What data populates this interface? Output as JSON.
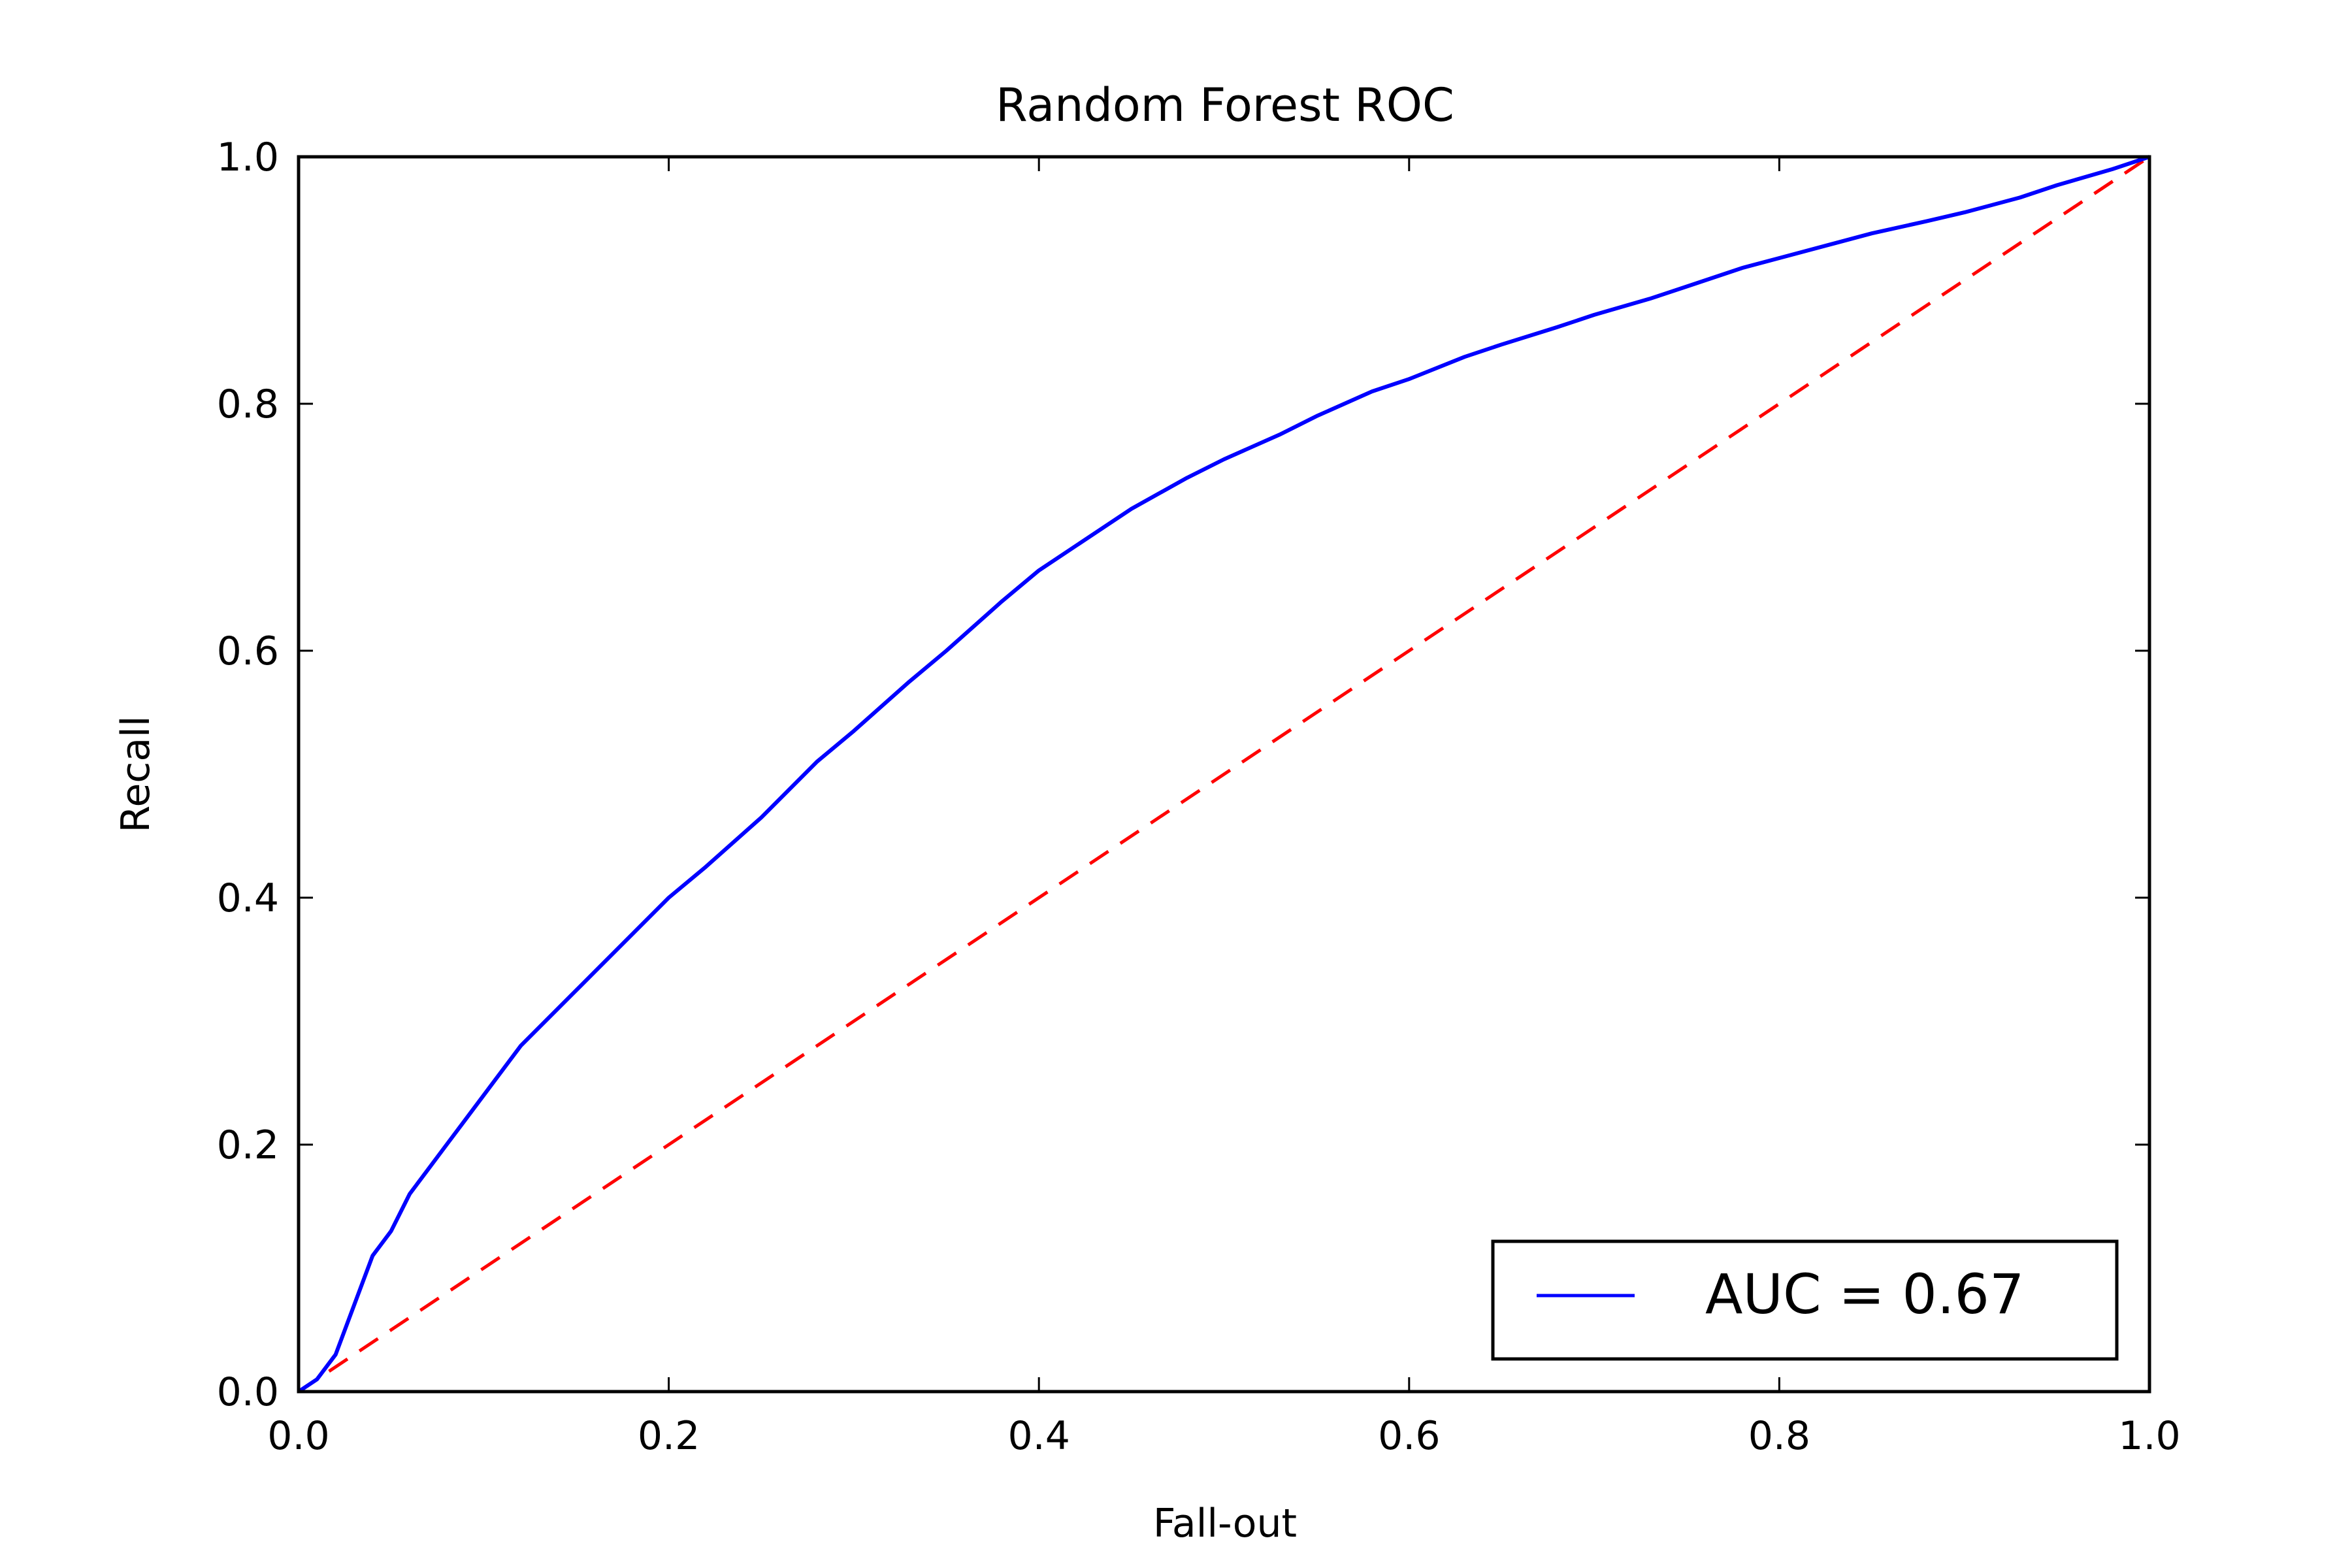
{
  "chart_data": {
    "type": "line",
    "title": "Random Forest ROC",
    "xlabel": "Fall-out",
    "ylabel": "Recall",
    "xlim": [
      0.0,
      1.0
    ],
    "ylim": [
      0.0,
      1.0
    ],
    "xticks": [
      "0.0",
      "0.2",
      "0.4",
      "0.6",
      "0.8",
      "1.0"
    ],
    "yticks": [
      "0.0",
      "0.2",
      "0.4",
      "0.6",
      "0.8",
      "1.0"
    ],
    "grid": false,
    "legend_position": "lower-right",
    "series": [
      {
        "name": "AUC = 0.67",
        "color": "#0000ff",
        "style": "solid",
        "x": [
          0.0,
          0.01,
          0.02,
          0.03,
          0.04,
          0.05,
          0.06,
          0.07,
          0.08,
          0.09,
          0.1,
          0.12,
          0.14,
          0.16,
          0.18,
          0.2,
          0.22,
          0.25,
          0.28,
          0.3,
          0.33,
          0.35,
          0.38,
          0.4,
          0.43,
          0.45,
          0.48,
          0.5,
          0.53,
          0.55,
          0.58,
          0.6,
          0.63,
          0.65,
          0.68,
          0.7,
          0.73,
          0.75,
          0.78,
          0.8,
          0.83,
          0.85,
          0.88,
          0.9,
          0.93,
          0.95,
          0.98,
          1.0
        ],
        "y": [
          0.0,
          0.01,
          0.03,
          0.07,
          0.11,
          0.13,
          0.16,
          0.18,
          0.2,
          0.22,
          0.24,
          0.28,
          0.31,
          0.34,
          0.37,
          0.4,
          0.425,
          0.465,
          0.51,
          0.535,
          0.575,
          0.6,
          0.64,
          0.665,
          0.695,
          0.715,
          0.74,
          0.755,
          0.775,
          0.79,
          0.81,
          0.82,
          0.838,
          0.848,
          0.862,
          0.872,
          0.885,
          0.895,
          0.91,
          0.918,
          0.93,
          0.938,
          0.948,
          0.955,
          0.967,
          0.977,
          0.99,
          1.0
        ]
      },
      {
        "name": "",
        "color": "#ff0000",
        "style": "dashed",
        "x": [
          0.0,
          1.0
        ],
        "y": [
          0.0,
          1.0
        ]
      }
    ]
  }
}
